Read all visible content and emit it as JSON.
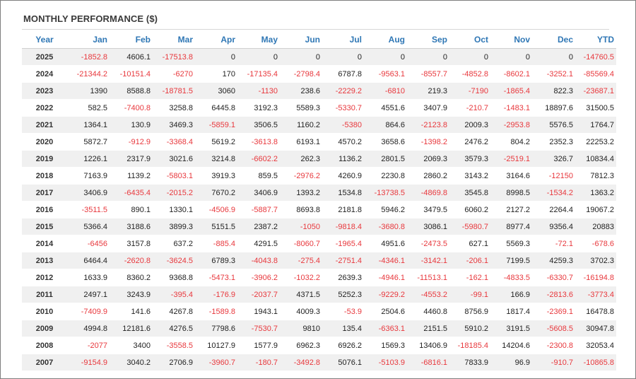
{
  "title": "MONTHLY PERFORMANCE ($)",
  "colors": {
    "header_text": "#2f77b5",
    "negative_text": "#e8383d",
    "row_stripe": "#f0f0f0"
  },
  "columns": [
    "Year",
    "Jan",
    "Feb",
    "Mar",
    "Apr",
    "May",
    "Jun",
    "Jul",
    "Aug",
    "Sep",
    "Oct",
    "Nov",
    "Dec",
    "YTD"
  ],
  "rows": [
    {
      "year": "2025",
      "values": [
        "-1852.8",
        "4606.1",
        "-17513.8",
        "0",
        "0",
        "0",
        "0",
        "0",
        "0",
        "0",
        "0",
        "0",
        "-14760.5"
      ]
    },
    {
      "year": "2024",
      "values": [
        "-21344.2",
        "-10151.4",
        "-6270",
        "170",
        "-17135.4",
        "-2798.4",
        "6787.8",
        "-9563.1",
        "-8557.7",
        "-4852.8",
        "-8602.1",
        "-3252.1",
        "-85569.4"
      ]
    },
    {
      "year": "2023",
      "values": [
        "1390",
        "8588.8",
        "-18781.5",
        "3060",
        "-1130",
        "238.6",
        "-2229.2",
        "-6810",
        "219.3",
        "-7190",
        "-1865.4",
        "822.3",
        "-23687.1"
      ]
    },
    {
      "year": "2022",
      "values": [
        "582.5",
        "-7400.8",
        "3258.8",
        "6445.8",
        "3192.3",
        "5589.3",
        "-5330.7",
        "4551.6",
        "3407.9",
        "-210.7",
        "-1483.1",
        "18897.6",
        "31500.5"
      ]
    },
    {
      "year": "2021",
      "values": [
        "1364.1",
        "130.9",
        "3469.3",
        "-5859.1",
        "3506.5",
        "1160.2",
        "-5380",
        "864.6",
        "-2123.8",
        "2009.3",
        "-2953.8",
        "5576.5",
        "1764.7"
      ]
    },
    {
      "year": "2020",
      "values": [
        "5872.7",
        "-912.9",
        "-3368.4",
        "5619.2",
        "-3613.8",
        "6193.1",
        "4570.2",
        "3658.6",
        "-1398.2",
        "2476.2",
        "804.2",
        "2352.3",
        "22253.2"
      ]
    },
    {
      "year": "2019",
      "values": [
        "1226.1",
        "2317.9",
        "3021.6",
        "3214.8",
        "-6602.2",
        "262.3",
        "1136.2",
        "2801.5",
        "2069.3",
        "3579.3",
        "-2519.1",
        "326.7",
        "10834.4"
      ]
    },
    {
      "year": "2018",
      "values": [
        "7163.9",
        "1139.2",
        "-5803.1",
        "3919.3",
        "859.5",
        "-2976.2",
        "4260.9",
        "2230.8",
        "2860.2",
        "3143.2",
        "3164.6",
        "-12150",
        "7812.3"
      ]
    },
    {
      "year": "2017",
      "values": [
        "3406.9",
        "-6435.4",
        "-2015.2",
        "7670.2",
        "3406.9",
        "1393.2",
        "1534.8",
        "-13738.5",
        "-4869.8",
        "3545.8",
        "8998.5",
        "-1534.2",
        "1363.2"
      ]
    },
    {
      "year": "2016",
      "values": [
        "-3511.5",
        "890.1",
        "1330.1",
        "-4506.9",
        "-5887.7",
        "8693.8",
        "2181.8",
        "5946.2",
        "3479.5",
        "6060.2",
        "2127.2",
        "2264.4",
        "19067.2"
      ]
    },
    {
      "year": "2015",
      "values": [
        "5366.4",
        "3188.6",
        "3899.3",
        "5151.5",
        "2387.2",
        "-1050",
        "-9818.4",
        "-3680.8",
        "3086.1",
        "-5980.7",
        "8977.4",
        "9356.4",
        "20883"
      ]
    },
    {
      "year": "2014",
      "values": [
        "-6456",
        "3157.8",
        "637.2",
        "-885.4",
        "4291.5",
        "-8060.7",
        "-1965.4",
        "4951.6",
        "-2473.5",
        "627.1",
        "5569.3",
        "-72.1",
        "-678.6"
      ]
    },
    {
      "year": "2013",
      "values": [
        "6464.4",
        "-2620.8",
        "-3624.5",
        "6789.3",
        "-4043.8",
        "-275.4",
        "-2751.4",
        "-4346.1",
        "-3142.1",
        "-206.1",
        "7199.5",
        "4259.3",
        "3702.3"
      ]
    },
    {
      "year": "2012",
      "values": [
        "1633.9",
        "8360.2",
        "9368.8",
        "-5473.1",
        "-3906.2",
        "-1032.2",
        "2639.3",
        "-4946.1",
        "-11513.1",
        "-162.1",
        "-4833.5",
        "-6330.7",
        "-16194.8"
      ]
    },
    {
      "year": "2011",
      "values": [
        "2497.1",
        "3243.9",
        "-395.4",
        "-176.9",
        "-2037.7",
        "4371.5",
        "5252.3",
        "-9229.2",
        "-4553.2",
        "-99.1",
        "166.9",
        "-2813.6",
        "-3773.4"
      ]
    },
    {
      "year": "2010",
      "values": [
        "-7409.9",
        "141.6",
        "4267.8",
        "-1589.8",
        "1943.1",
        "4009.3",
        "-53.9",
        "2504.6",
        "4460.8",
        "8756.9",
        "1817.4",
        "-2369.1",
        "16478.8"
      ]
    },
    {
      "year": "2009",
      "values": [
        "4994.8",
        "12181.6",
        "4276.5",
        "7798.6",
        "-7530.7",
        "9810",
        "135.4",
        "-6363.1",
        "2151.5",
        "5910.2",
        "3191.5",
        "-5608.5",
        "30947.8"
      ]
    },
    {
      "year": "2008",
      "values": [
        "-2077",
        "3400",
        "-3558.5",
        "10127.9",
        "1577.9",
        "6962.3",
        "6926.2",
        "1569.3",
        "13406.9",
        "-18185.4",
        "14204.6",
        "-2300.8",
        "32053.4"
      ]
    },
    {
      "year": "2007",
      "values": [
        "-9154.9",
        "3040.2",
        "2706.9",
        "-3960.7",
        "-180.7",
        "-3492.8",
        "5076.1",
        "-5103.9",
        "-6816.1",
        "7833.9",
        "96.9",
        "-910.7",
        "-10865.8"
      ]
    }
  ]
}
